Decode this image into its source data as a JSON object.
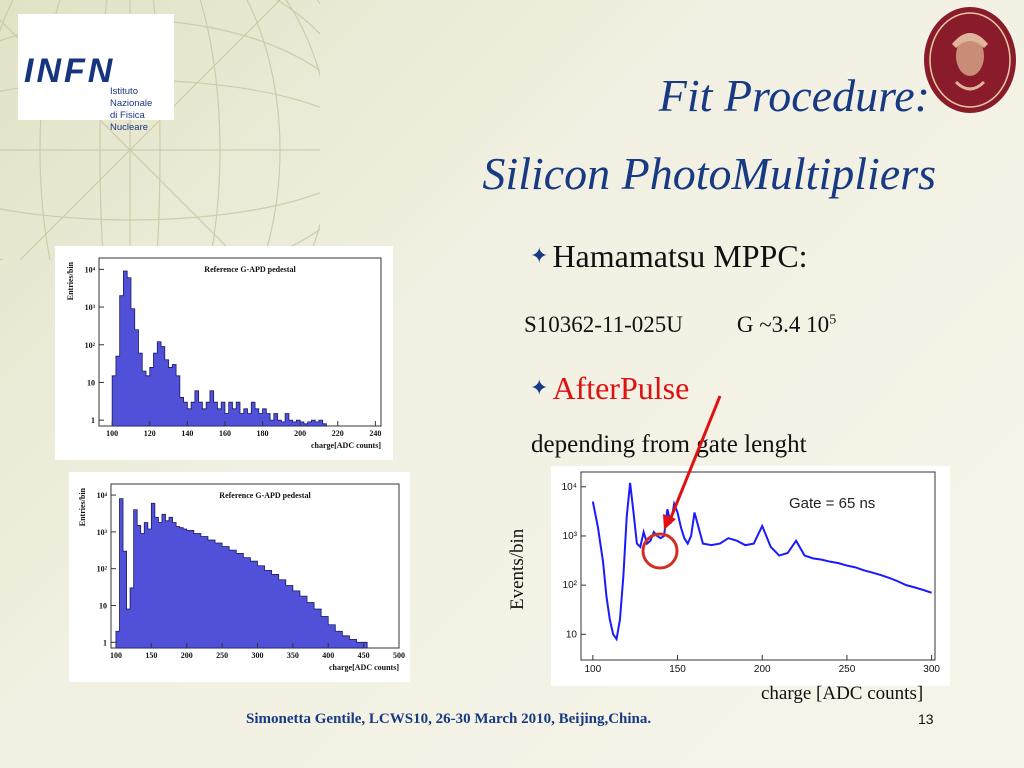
{
  "logo": {
    "letters": "INFN",
    "line1": "Istituto Nazionale",
    "line2": "di Fisica Nucleare"
  },
  "seal": {
    "text": "STVDIVM VRBIS"
  },
  "title": {
    "line1": "Fit Procedure:",
    "line2": "Silicon PhotoMultipliers"
  },
  "bullets": {
    "b1": "Hamamatsu  MPPC:",
    "model": "S10362-11-025U",
    "gain_base": "G ~3.4 10",
    "gain_exp": "5",
    "b2": "AfterPulse",
    "dependency": "depending from gate lenght"
  },
  "footer": "Simonetta Gentile,  LCWS10, 26-30 March 2010, Beijing,China.",
  "page_number": "13",
  "chart_data": [
    {
      "type": "histogram",
      "title": "Reference G-APD pedestal",
      "xlabel": "charge[ADC counts]",
      "ylabel": "Entries/bin",
      "xticks": [
        "100",
        "120",
        "140",
        "160",
        "180",
        "200",
        "220",
        "240"
      ],
      "yticks": [
        "1",
        "10",
        "10²",
        "10³",
        "10⁴"
      ],
      "xlim": [
        93,
        243
      ],
      "yscale": "log",
      "color": "#5050d8",
      "x": [
        100,
        102,
        104,
        106,
        108,
        110,
        112,
        114,
        116,
        118,
        120,
        122,
        124,
        126,
        128,
        130,
        132,
        134,
        136,
        138,
        140,
        142,
        144,
        146,
        148,
        150,
        152,
        154,
        156,
        158,
        160,
        162,
        164,
        166,
        168,
        170,
        172,
        174,
        176,
        178,
        180,
        182,
        184,
        186,
        188,
        190,
        192,
        194,
        196,
        198,
        200,
        202,
        204,
        206,
        208,
        210,
        212
      ],
      "values": [
        15,
        50,
        2000,
        9000,
        6000,
        900,
        250,
        60,
        20,
        15,
        25,
        60,
        120,
        90,
        40,
        25,
        30,
        15,
        4,
        3,
        2,
        3,
        6,
        3,
        2,
        3,
        6,
        3,
        2,
        3,
        1.5,
        3,
        2,
        3,
        1.5,
        2,
        1.5,
        3,
        2,
        1.5,
        2,
        1.5,
        1,
        1.5,
        1,
        0.9,
        1.5,
        1,
        0.9,
        1,
        0.9,
        0.8,
        0.9,
        1,
        0.9,
        1,
        0.8
      ]
    },
    {
      "type": "histogram",
      "title": "Reference G-APD pedestal",
      "xlabel": "charge[ADC counts]",
      "ylabel": "Entries/bin",
      "xticks": [
        "100",
        "150",
        "200",
        "250",
        "300",
        "350",
        "400",
        "450",
        "500"
      ],
      "yticks": [
        "1",
        "10",
        "10²",
        "10³",
        "10⁴"
      ],
      "xlim": [
        93,
        500
      ],
      "yscale": "log",
      "color": "#5050d8",
      "x": [
        100,
        105,
        110,
        115,
        120,
        125,
        130,
        135,
        140,
        145,
        150,
        155,
        160,
        165,
        170,
        175,
        180,
        185,
        190,
        195,
        200,
        210,
        220,
        230,
        240,
        250,
        260,
        270,
        280,
        290,
        300,
        310,
        320,
        330,
        340,
        350,
        360,
        370,
        380,
        390,
        400,
        410,
        420,
        430,
        440,
        450
      ],
      "values": [
        2,
        8000,
        300,
        8,
        30,
        4000,
        1500,
        900,
        1800,
        1200,
        6000,
        2500,
        1800,
        3000,
        2000,
        2500,
        1800,
        1400,
        1300,
        1200,
        1100,
        900,
        750,
        600,
        500,
        400,
        320,
        260,
        200,
        160,
        120,
        90,
        70,
        50,
        35,
        25,
        18,
        12,
        8,
        5,
        3,
        2,
        1.5,
        1.2,
        1,
        1
      ]
    },
    {
      "type": "line",
      "annotation": "Gate = 65 ns",
      "xlabel": "charge [ADC counts]",
      "ylabel": "Events/bin",
      "xticks": [
        "100",
        "150",
        "200",
        "250",
        "300"
      ],
      "yticks": [
        "10",
        "10²",
        "10³",
        "10⁴"
      ],
      "xlim": [
        93,
        302
      ],
      "yscale": "log",
      "color": "#1a1aff",
      "x": [
        100,
        103,
        106,
        108,
        110,
        112,
        114,
        116,
        118,
        120,
        122,
        124,
        126,
        128,
        130,
        132,
        134,
        136,
        138,
        140,
        142,
        144,
        146,
        148,
        150,
        152,
        154,
        156,
        158,
        160,
        165,
        170,
        175,
        180,
        185,
        190,
        195,
        200,
        205,
        210,
        215,
        220,
        225,
        230,
        235,
        240,
        245,
        250,
        255,
        260,
        265,
        270,
        275,
        280,
        285,
        290,
        295,
        300
      ],
      "values": [
        5000,
        1500,
        300,
        60,
        20,
        10,
        8,
        20,
        150,
        2500,
        12000,
        3000,
        700,
        600,
        1200,
        700,
        800,
        1200,
        1000,
        900,
        1000,
        3500,
        1800,
        4500,
        3000,
        1500,
        900,
        700,
        1000,
        3000,
        700,
        650,
        700,
        900,
        800,
        650,
        700,
        1600,
        600,
        400,
        450,
        800,
        400,
        350,
        330,
        300,
        280,
        250,
        230,
        200,
        180,
        160,
        140,
        120,
        100,
        90,
        80,
        70
      ]
    }
  ]
}
